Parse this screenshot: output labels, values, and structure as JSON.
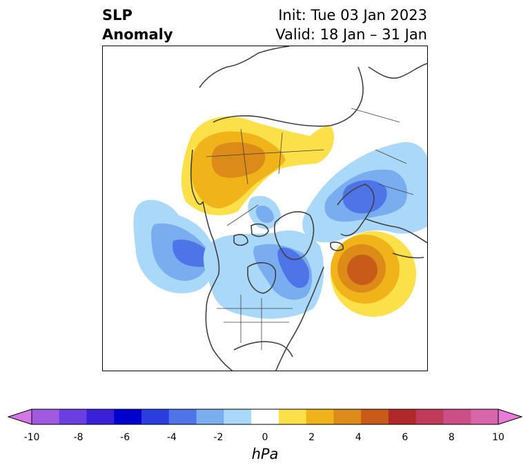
{
  "title": {
    "left_line1": "SLP",
    "left_line2": "Anomaly",
    "right_line1": "Init: Tue 03 Jan 2023",
    "right_line2": "Valid: 18 Jan – 31 Jan"
  },
  "map": {
    "projection": "north-polar-stereographic",
    "region": "Northern Hemisphere (North America, North Atlantic, Europe, Asia)",
    "features": [
      {
        "name": "positive-anomaly-north-asia",
        "sign": "positive",
        "peak_hpa": 4
      },
      {
        "name": "positive-anomaly-north-atlantic",
        "sign": "positive",
        "peak_hpa": 5
      },
      {
        "name": "negative-anomaly-gulf-of-alaska",
        "sign": "negative",
        "peak_hpa": -4
      },
      {
        "name": "negative-anomaly-hudson-bay",
        "sign": "negative",
        "peak_hpa": -4
      },
      {
        "name": "negative-anomaly-europe",
        "sign": "negative",
        "peak_hpa": -5
      }
    ]
  },
  "colorbar": {
    "label": "hPa",
    "ticks": [
      "-10",
      "-8",
      "-6",
      "-4",
      "-2",
      "0",
      "2",
      "4",
      "6",
      "8",
      "10"
    ],
    "extend": "both",
    "colors": [
      "#d478e8",
      "#a05ae0",
      "#6a3ee0",
      "#3a1ed8",
      "#0000cc",
      "#2a3ee0",
      "#4e74e8",
      "#78aef0",
      "#aad8f8",
      "#ffffff",
      "#fbe04a",
      "#f0b41a",
      "#dc8a18",
      "#c85a1a",
      "#b0282a",
      "#c03a5a",
      "#cc4e86",
      "#d864aa",
      "#e87ad8"
    ]
  }
}
